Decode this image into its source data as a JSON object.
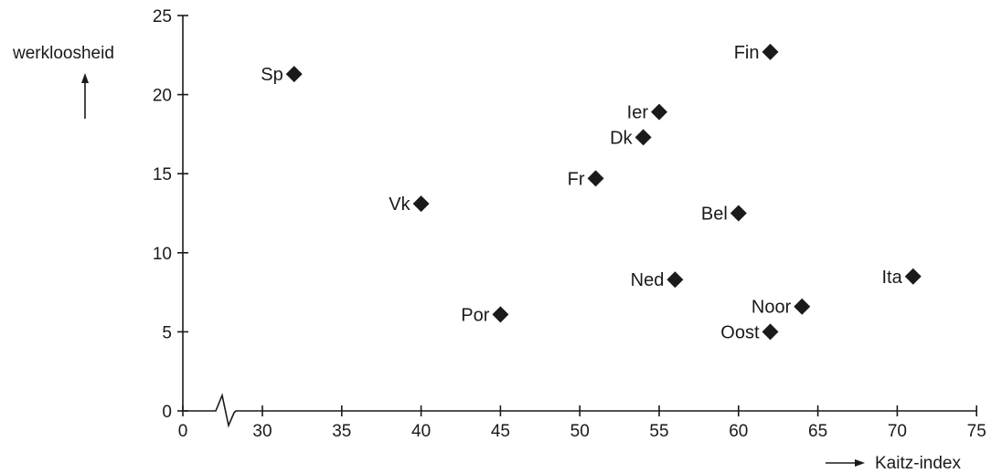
{
  "chart_data": {
    "type": "scatter",
    "title": "",
    "xlabel": "Kaitz-index",
    "ylabel": "werkloosheid",
    "x_axis_break": true,
    "xlim": [
      0,
      75
    ],
    "ylim": [
      0,
      25
    ],
    "x_ticks": [
      0,
      30,
      35,
      40,
      45,
      50,
      55,
      60,
      65,
      70,
      75
    ],
    "y_ticks": [
      0,
      5,
      10,
      15,
      20,
      25
    ],
    "grid": false,
    "marker": "diamond",
    "points": [
      {
        "label": "Sp",
        "x": 32,
        "y": 21.3
      },
      {
        "label": "Fin",
        "x": 62,
        "y": 22.7
      },
      {
        "label": "Ier",
        "x": 55,
        "y": 18.9
      },
      {
        "label": "Dk",
        "x": 54,
        "y": 17.3
      },
      {
        "label": "Fr",
        "x": 51,
        "y": 14.7
      },
      {
        "label": "Vk",
        "x": 40,
        "y": 13.1
      },
      {
        "label": "Bel",
        "x": 60,
        "y": 12.5
      },
      {
        "label": "Ned",
        "x": 56,
        "y": 8.3
      },
      {
        "label": "Ita",
        "x": 71,
        "y": 8.5
      },
      {
        "label": "Noor",
        "x": 64,
        "y": 6.6
      },
      {
        "label": "Por",
        "x": 45,
        "y": 6.1
      },
      {
        "label": "Oost",
        "x": 62,
        "y": 5.0
      }
    ]
  },
  "colors": {
    "ink": "#1a1a1a",
    "background": "#ffffff"
  }
}
